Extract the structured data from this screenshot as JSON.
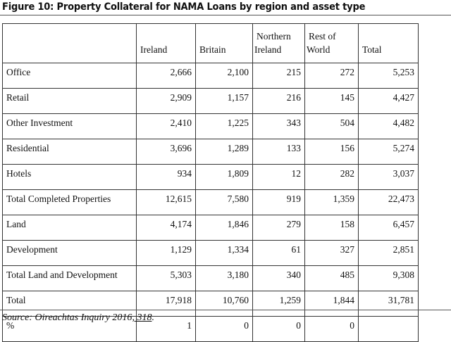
{
  "title": "Figure 10: Property Collateral for NAMA Loans by region and asset type",
  "table": {
    "headers": [
      "",
      "Ireland",
      "Britain",
      "Northern Ireland",
      "Rest of World",
      "Total"
    ],
    "header_lines": {
      "northern_ireland": [
        "Northern",
        "Ireland"
      ],
      "rest_of_world": [
        "Rest of",
        "World"
      ]
    },
    "rows": [
      {
        "label": "Office",
        "values": [
          "2,666",
          "2,100",
          "215",
          "272",
          "5,253"
        ]
      },
      {
        "label": "Retail",
        "values": [
          "2,909",
          "1,157",
          "216",
          "145",
          "4,427"
        ]
      },
      {
        "label": "Other Investment",
        "values": [
          "2,410",
          "1,225",
          "343",
          "504",
          "4,482"
        ]
      },
      {
        "label": "Residential",
        "values": [
          "3,696",
          "1,289",
          "133",
          "156",
          "5,274"
        ]
      },
      {
        "label": "Hotels",
        "values": [
          "934",
          "1,809",
          "12",
          "282",
          "3,037"
        ]
      },
      {
        "label": "Total Completed Properties",
        "values": [
          "12,615",
          "7,580",
          "919",
          "1,359",
          "22,473"
        ]
      },
      {
        "label": "Land",
        "values": [
          "4,174",
          "1,846",
          "279",
          "158",
          "6,457"
        ]
      },
      {
        "label": "Development",
        "values": [
          "1,129",
          "1,334",
          "61",
          "327",
          "2,851"
        ]
      },
      {
        "label": "Total Land and Development",
        "values": [
          "5,303",
          "3,180",
          "340",
          "485",
          "9,308"
        ]
      },
      {
        "label": "Total",
        "values": [
          "17,918",
          "10,760",
          "1,259",
          "1,844",
          "31,781"
        ]
      },
      {
        "label": "%",
        "values": [
          "1",
          "0",
          "0",
          "0",
          ""
        ]
      }
    ]
  },
  "source": {
    "prefix": "Source: Oireachtas Inquiry 2016",
    "link": ", 318",
    "suffix": "."
  }
}
